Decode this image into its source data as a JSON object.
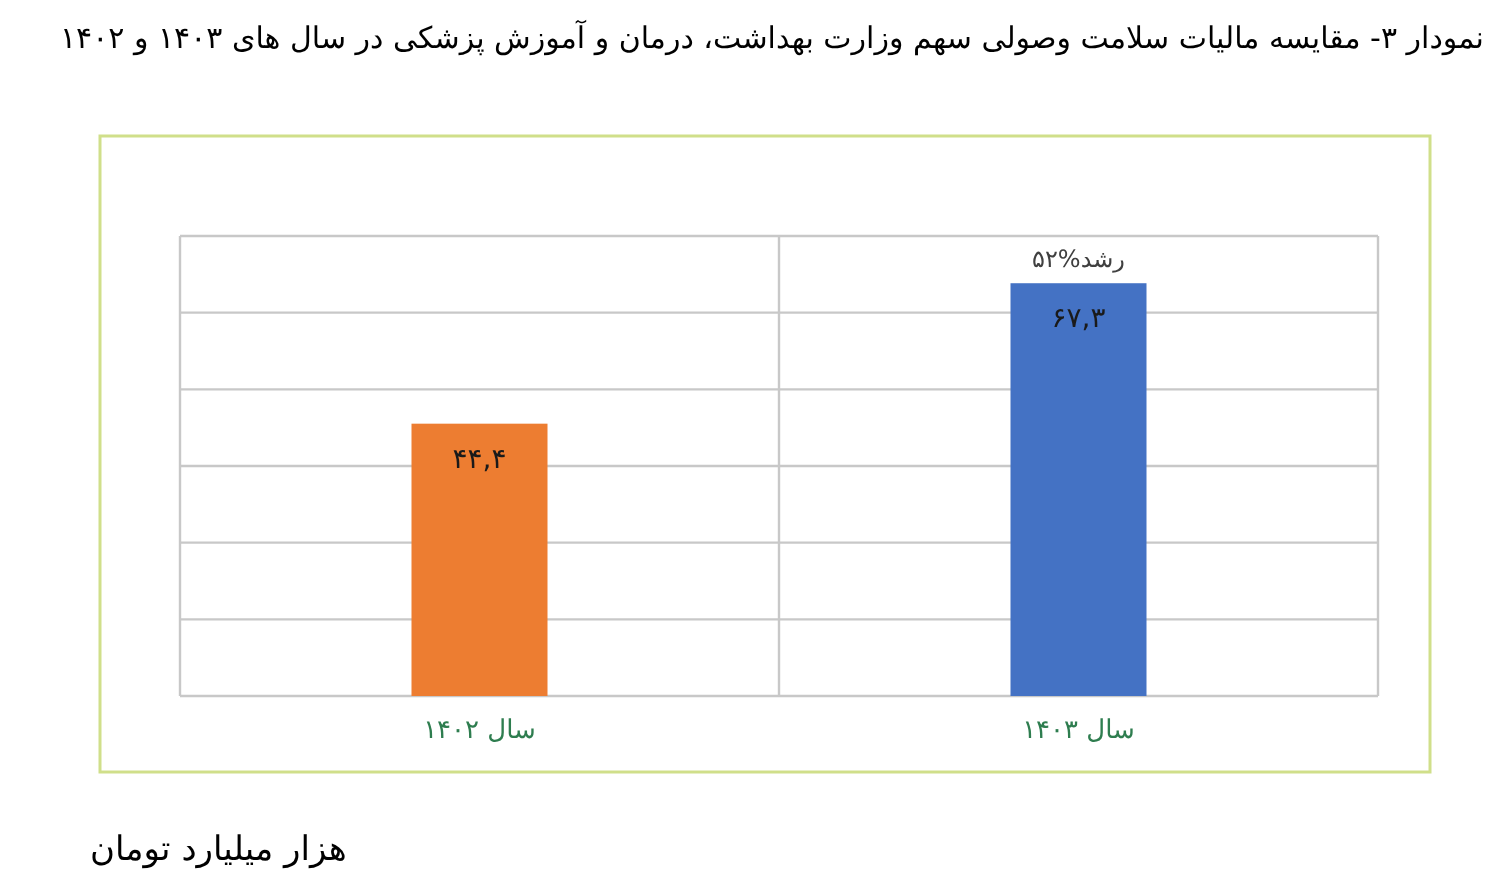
{
  "chart_data": {
    "type": "bar",
    "title": "نمودار ۳- مقایسه مالیات سلامت وصولی سهم وزارت بهداشت، درمان و آموزش پزشکی در سال های ۱۴۰۳ و ۱۴۰۲",
    "categories": [
      "سال ۱۴۰۲",
      "سال ۱۴۰۳"
    ],
    "values": [
      44.4,
      67.3
    ],
    "colors": [
      "#ed7d31",
      "#4472c4"
    ],
    "value_labels": [
      "۴۴,۴",
      "۶۷,۳"
    ],
    "ylim": [
      0,
      75
    ],
    "yticks": [
      {
        "value": 0,
        "label": null
      },
      {
        "value": 12.5,
        "label": null
      },
      {
        "value": 25,
        "label": null
      },
      {
        "value": 37.5,
        "label": null
      },
      {
        "value": 50,
        "label": null
      },
      {
        "value": 62.5,
        "label": null
      },
      {
        "value": 75,
        "label": null
      }
    ],
    "grid": "y",
    "annotations": [
      {
        "text": "۵۲%رشد",
        "x": "سال ۱۴۰۳",
        "y": 67.3
      },
      "هزار میلیارد تومان"
    ]
  }
}
